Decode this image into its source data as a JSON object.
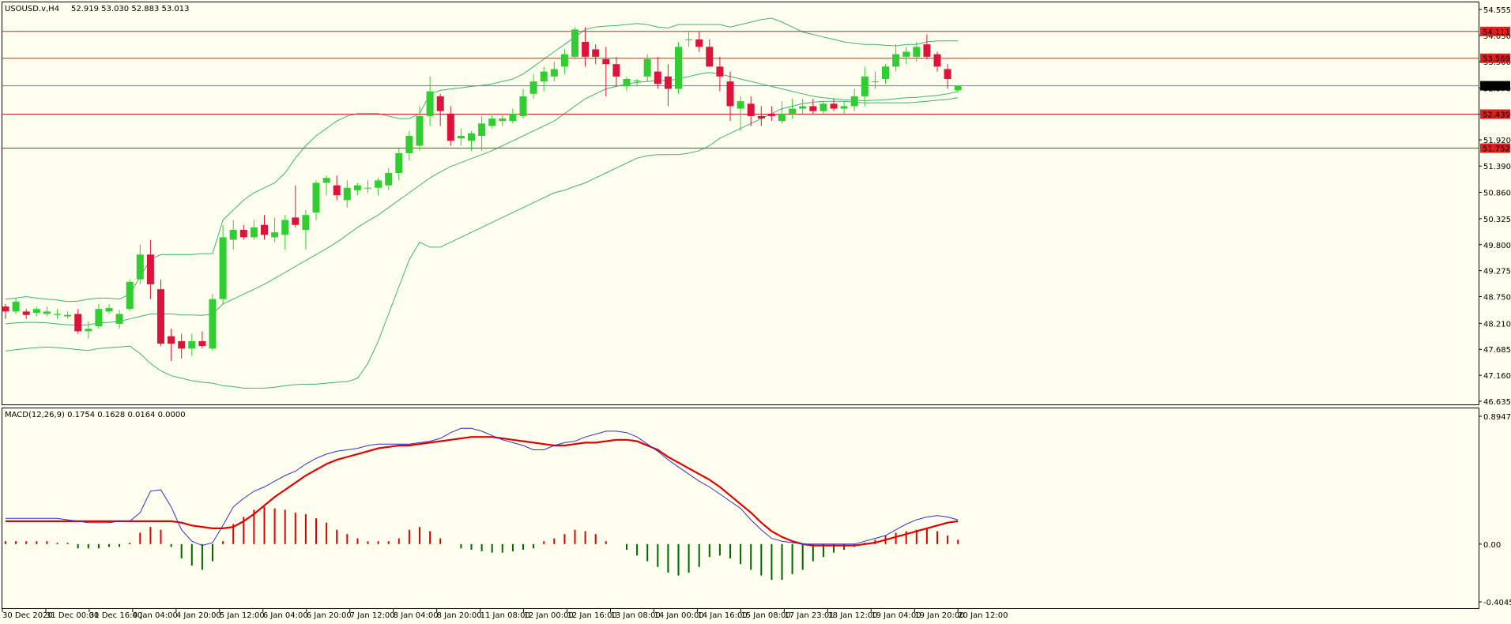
{
  "chart_data": [
    {
      "type": "candlestick",
      "title": "USOUSD.v,H4",
      "ohlc_header": "52.919 53.030 52.883 53.013",
      "ylim": [
        46.635,
        54.555
      ],
      "y_ticks": [
        "54.555",
        "54.030",
        "53.500",
        "52.970",
        "52.440",
        "51.920",
        "51.390",
        "50.860",
        "50.325",
        "49.800",
        "49.275",
        "48.750",
        "48.210",
        "47.685",
        "47.160",
        "46.635"
      ],
      "bar_colors": {
        "up": "#32cd32",
        "down": "#dc143c"
      },
      "candles": [
        [
          48.55,
          48.6,
          48.3,
          48.45
        ],
        [
          48.45,
          48.72,
          48.4,
          48.65
        ],
        [
          48.45,
          48.5,
          48.3,
          48.38
        ],
        [
          48.42,
          48.55,
          48.35,
          48.5
        ],
        [
          48.4,
          48.55,
          48.35,
          48.45
        ],
        [
          48.38,
          48.5,
          48.3,
          48.4
        ],
        [
          48.35,
          48.45,
          48.3,
          48.38
        ],
        [
          48.4,
          48.5,
          48.0,
          48.05
        ],
        [
          48.05,
          48.25,
          47.9,
          48.1
        ],
        [
          48.15,
          48.6,
          48.1,
          48.5
        ],
        [
          48.45,
          48.6,
          48.4,
          48.52
        ],
        [
          48.2,
          48.48,
          48.1,
          48.4
        ],
        [
          48.5,
          49.1,
          48.45,
          49.05
        ],
        [
          49.1,
          49.8,
          49.0,
          49.6
        ],
        [
          49.6,
          49.9,
          48.7,
          49.0
        ],
        [
          48.9,
          49.1,
          47.75,
          47.8
        ],
        [
          47.95,
          48.1,
          47.45,
          47.8
        ],
        [
          47.85,
          48.0,
          47.5,
          47.7
        ],
        [
          47.7,
          48.0,
          47.55,
          47.85
        ],
        [
          47.85,
          48.05,
          47.7,
          47.75
        ],
        [
          47.7,
          48.8,
          47.65,
          48.7
        ],
        [
          48.7,
          50.2,
          48.6,
          49.95
        ],
        [
          49.9,
          50.3,
          49.7,
          50.1
        ],
        [
          50.1,
          50.2,
          49.9,
          49.95
        ],
        [
          49.95,
          50.3,
          49.9,
          50.15
        ],
        [
          50.2,
          50.4,
          49.9,
          50.0
        ],
        [
          49.95,
          50.35,
          49.85,
          50.05
        ],
        [
          50.0,
          50.4,
          49.7,
          50.3
        ],
        [
          50.35,
          51.0,
          50.15,
          50.2
        ],
        [
          50.1,
          50.5,
          49.7,
          50.4
        ],
        [
          50.45,
          51.1,
          50.3,
          51.05
        ],
        [
          51.05,
          51.2,
          50.8,
          51.15
        ],
        [
          51.0,
          51.2,
          50.7,
          50.8
        ],
        [
          50.7,
          51.1,
          50.55,
          50.95
        ],
        [
          50.9,
          51.05,
          50.8,
          51.0
        ],
        [
          50.95,
          51.1,
          50.85,
          50.95
        ],
        [
          50.95,
          51.15,
          50.8,
          51.1
        ],
        [
          51.0,
          51.35,
          50.9,
          51.25
        ],
        [
          51.25,
          51.75,
          51.1,
          51.65
        ],
        [
          51.65,
          52.1,
          51.5,
          52.0
        ],
        [
          51.8,
          52.6,
          51.7,
          52.4
        ],
        [
          52.4,
          53.2,
          52.2,
          52.9
        ],
        [
          52.8,
          52.85,
          52.2,
          52.5
        ],
        [
          52.45,
          52.6,
          51.8,
          51.9
        ],
        [
          51.95,
          52.15,
          51.8,
          52.0
        ],
        [
          51.9,
          52.1,
          51.7,
          52.05
        ],
        [
          52.0,
          52.4,
          51.7,
          52.25
        ],
        [
          52.2,
          52.45,
          52.15,
          52.35
        ],
        [
          52.3,
          52.45,
          52.2,
          52.35
        ],
        [
          52.3,
          52.55,
          52.25,
          52.45
        ],
        [
          52.4,
          52.95,
          52.35,
          52.8
        ],
        [
          52.85,
          53.25,
          52.75,
          53.1
        ],
        [
          53.1,
          53.4,
          52.9,
          53.3
        ],
        [
          53.2,
          53.5,
          53.1,
          53.35
        ],
        [
          53.4,
          53.75,
          53.25,
          53.65
        ],
        [
          53.6,
          54.2,
          53.55,
          54.15
        ],
        [
          53.9,
          54.2,
          53.4,
          53.6
        ],
        [
          53.75,
          53.85,
          53.45,
          53.6
        ],
        [
          53.55,
          53.8,
          52.8,
          53.45
        ],
        [
          53.45,
          53.6,
          53.0,
          53.2
        ],
        [
          53.0,
          53.2,
          52.9,
          53.15
        ],
        [
          53.1,
          53.15,
          53.0,
          53.12
        ],
        [
          53.2,
          53.65,
          53.1,
          53.55
        ],
        [
          53.3,
          53.6,
          52.95,
          53.05
        ],
        [
          53.2,
          53.45,
          52.6,
          52.95
        ],
        [
          52.95,
          53.9,
          52.85,
          53.8
        ],
        [
          53.95,
          54.1,
          53.8,
          53.95
        ],
        [
          53.95,
          54.1,
          53.7,
          53.8
        ],
        [
          53.8,
          53.95,
          53.4,
          53.4
        ],
        [
          53.4,
          53.6,
          52.9,
          53.2
        ],
        [
          53.1,
          53.3,
          52.3,
          52.6
        ],
        [
          52.55,
          52.8,
          52.1,
          52.7
        ],
        [
          52.65,
          52.8,
          52.2,
          52.4
        ],
        [
          52.4,
          52.6,
          52.2,
          52.35
        ],
        [
          52.45,
          52.6,
          52.3,
          52.4
        ],
        [
          52.3,
          52.7,
          52.25,
          52.45
        ],
        [
          52.45,
          52.75,
          52.35,
          52.55
        ],
        [
          52.55,
          52.75,
          52.45,
          52.6
        ],
        [
          52.6,
          52.75,
          52.45,
          52.5
        ],
        [
          52.5,
          52.7,
          52.45,
          52.65
        ],
        [
          52.65,
          52.75,
          52.5,
          52.55
        ],
        [
          52.55,
          52.7,
          52.45,
          52.6
        ],
        [
          52.6,
          52.95,
          52.5,
          52.8
        ],
        [
          52.8,
          53.4,
          52.6,
          53.2
        ],
        [
          53.1,
          53.3,
          52.95,
          53.1
        ],
        [
          53.15,
          53.45,
          53.05,
          53.4
        ],
        [
          53.4,
          53.85,
          53.3,
          53.65
        ],
        [
          53.6,
          53.8,
          53.45,
          53.7
        ],
        [
          53.6,
          53.9,
          53.5,
          53.8
        ],
        [
          53.85,
          54.05,
          53.55,
          53.6
        ],
        [
          53.65,
          53.7,
          53.3,
          53.4
        ],
        [
          53.35,
          53.45,
          52.95,
          53.15
        ],
        [
          52.92,
          53.03,
          52.88,
          53.01
        ]
      ],
      "bollinger": {
        "upper": [
          48.7,
          48.72,
          48.75,
          48.72,
          48.7,
          48.68,
          48.65,
          48.66,
          48.7,
          48.72,
          48.72,
          48.7,
          48.8,
          49.15,
          49.5,
          49.6,
          49.6,
          49.6,
          49.6,
          49.62,
          49.62,
          50.3,
          50.5,
          50.7,
          50.85,
          50.95,
          51.05,
          51.25,
          51.55,
          51.8,
          52.0,
          52.15,
          52.3,
          52.4,
          52.45,
          52.45,
          52.45,
          52.4,
          52.35,
          52.35,
          52.45,
          52.85,
          52.92,
          52.95,
          52.97,
          53.0,
          53.02,
          53.05,
          53.1,
          53.15,
          53.25,
          53.4,
          53.55,
          53.7,
          53.85,
          54.0,
          54.15,
          54.2,
          54.22,
          54.23,
          54.25,
          54.27,
          54.25,
          54.2,
          54.18,
          54.25,
          54.25,
          54.25,
          54.25,
          54.25,
          54.2,
          54.25,
          54.3,
          54.35,
          54.38,
          54.3,
          54.2,
          54.1,
          54.05,
          54.0,
          53.95,
          53.9,
          53.87,
          53.85,
          53.85,
          53.83,
          53.82,
          53.85,
          53.85,
          53.9,
          53.92,
          53.92,
          53.92
        ],
        "middle": [
          48.2,
          48.22,
          48.23,
          48.23,
          48.22,
          48.2,
          48.18,
          48.17,
          48.18,
          48.22,
          48.23,
          48.25,
          48.3,
          48.35,
          48.4,
          48.4,
          48.4,
          48.38,
          48.38,
          48.37,
          48.4,
          48.6,
          48.7,
          48.8,
          48.9,
          49.0,
          49.12,
          49.24,
          49.36,
          49.48,
          49.6,
          49.72,
          49.85,
          50.0,
          50.15,
          50.28,
          50.4,
          50.55,
          50.7,
          50.85,
          51.0,
          51.15,
          51.27,
          51.38,
          51.46,
          51.54,
          51.62,
          51.7,
          51.8,
          51.9,
          52.0,
          52.1,
          52.2,
          52.3,
          52.45,
          52.6,
          52.75,
          52.85,
          52.95,
          53.0,
          53.05,
          53.08,
          53.1,
          53.12,
          53.12,
          53.15,
          53.2,
          53.25,
          53.28,
          53.25,
          53.2,
          53.15,
          53.1,
          53.05,
          53.0,
          52.95,
          52.9,
          52.85,
          52.8,
          52.77,
          52.75,
          52.73,
          52.72,
          52.71,
          52.72,
          52.73,
          52.75,
          52.77,
          52.78,
          52.8,
          52.82,
          52.85,
          52.9
        ],
        "lower": [
          47.65,
          47.68,
          47.7,
          47.72,
          47.73,
          47.72,
          47.7,
          47.68,
          47.66,
          47.7,
          47.72,
          47.73,
          47.75,
          47.6,
          47.4,
          47.25,
          47.15,
          47.1,
          47.05,
          47.02,
          47.0,
          46.95,
          46.93,
          46.9,
          46.9,
          46.9,
          46.92,
          46.95,
          46.97,
          46.98,
          46.98,
          47.0,
          47.02,
          47.03,
          47.1,
          47.4,
          47.85,
          48.4,
          48.95,
          49.5,
          49.85,
          49.75,
          49.75,
          49.85,
          49.95,
          50.05,
          50.15,
          50.25,
          50.35,
          50.45,
          50.55,
          50.65,
          50.75,
          50.85,
          50.9,
          50.98,
          51.05,
          51.15,
          51.25,
          51.35,
          51.45,
          51.55,
          51.6,
          51.62,
          51.62,
          51.62,
          51.65,
          51.7,
          51.8,
          51.95,
          52.05,
          52.15,
          52.25,
          52.35,
          52.45,
          52.55,
          52.6,
          52.65,
          52.68,
          52.7,
          52.7,
          52.7,
          52.68,
          52.67,
          52.67,
          52.67,
          52.67,
          52.67,
          52.68,
          52.7,
          52.72,
          52.74,
          52.77
        ]
      },
      "levels": [
        {
          "value": 54.111,
          "label": "54.111",
          "color": "#dc2020"
        },
        {
          "value": 53.569,
          "label": "53.569",
          "color": "#dc2020"
        },
        {
          "value": 53.013,
          "label": "53.013",
          "color": "#000000"
        },
        {
          "value": 52.439,
          "label": "52.439",
          "color": "#dc2020"
        },
        {
          "value": 51.752,
          "label": "51.752",
          "color": "#dc2020"
        }
      ]
    },
    {
      "type": "macd",
      "title": "MACD(12,26,9) 0.1754 0.1628 0.0164 0.0000",
      "ylim": [
        -0.4045,
        0.8947
      ],
      "y_ticks": [
        "0.8947",
        "0.00",
        "-0.4045"
      ],
      "colors": {
        "macd": "#2f2fcf",
        "signal": "#e00000",
        "hist_up": "#e00000",
        "hist_down": "#006400"
      },
      "macd": [
        0.18,
        0.18,
        0.18,
        0.18,
        0.18,
        0.18,
        0.17,
        0.16,
        0.15,
        0.15,
        0.15,
        0.16,
        0.16,
        0.22,
        0.37,
        0.38,
        0.26,
        0.1,
        0.02,
        -0.01,
        0.01,
        0.13,
        0.26,
        0.32,
        0.37,
        0.4,
        0.44,
        0.48,
        0.51,
        0.56,
        0.6,
        0.63,
        0.65,
        0.66,
        0.67,
        0.69,
        0.7,
        0.7,
        0.7,
        0.7,
        0.71,
        0.72,
        0.74,
        0.78,
        0.81,
        0.81,
        0.79,
        0.76,
        0.73,
        0.71,
        0.69,
        0.66,
        0.66,
        0.69,
        0.71,
        0.72,
        0.75,
        0.77,
        0.79,
        0.79,
        0.78,
        0.75,
        0.7,
        0.65,
        0.59,
        0.54,
        0.49,
        0.44,
        0.4,
        0.35,
        0.3,
        0.25,
        0.17,
        0.1,
        0.04,
        0.02,
        0.01,
        0.0,
        0.0,
        0.0,
        0.0,
        0.0,
        0.0,
        0.02,
        0.04,
        0.06,
        0.1,
        0.14,
        0.17,
        0.19,
        0.2,
        0.19,
        0.17
      ],
      "signal": [
        0.16,
        0.16,
        0.16,
        0.16,
        0.16,
        0.16,
        0.16,
        0.16,
        0.16,
        0.16,
        0.16,
        0.16,
        0.16,
        0.16,
        0.16,
        0.16,
        0.16,
        0.15,
        0.13,
        0.12,
        0.11,
        0.11,
        0.12,
        0.16,
        0.21,
        0.27,
        0.33,
        0.38,
        0.43,
        0.48,
        0.52,
        0.56,
        0.59,
        0.61,
        0.63,
        0.65,
        0.67,
        0.68,
        0.69,
        0.69,
        0.7,
        0.71,
        0.72,
        0.73,
        0.74,
        0.75,
        0.75,
        0.75,
        0.74,
        0.73,
        0.72,
        0.71,
        0.7,
        0.69,
        0.69,
        0.7,
        0.71,
        0.71,
        0.72,
        0.73,
        0.73,
        0.72,
        0.69,
        0.66,
        0.61,
        0.57,
        0.53,
        0.49,
        0.45,
        0.4,
        0.34,
        0.28,
        0.22,
        0.15,
        0.09,
        0.05,
        0.02,
        0.0,
        -0.01,
        -0.01,
        -0.01,
        -0.01,
        -0.01,
        0.0,
        0.01,
        0.03,
        0.05,
        0.07,
        0.09,
        0.11,
        0.13,
        0.15,
        0.16
      ],
      "histogram": [
        0.02,
        0.02,
        0.02,
        0.02,
        0.02,
        0.01,
        0.01,
        -0.03,
        -0.03,
        -0.03,
        -0.02,
        -0.02,
        0.01,
        0.08,
        0.12,
        0.1,
        -0.02,
        -0.1,
        -0.15,
        -0.18,
        -0.12,
        0.02,
        0.14,
        0.19,
        0.24,
        0.26,
        0.25,
        0.24,
        0.22,
        0.21,
        0.18,
        0.15,
        0.1,
        0.07,
        0.04,
        0.02,
        0.02,
        0.02,
        0.04,
        0.1,
        0.12,
        0.09,
        0.04,
        0.0,
        -0.03,
        -0.04,
        -0.05,
        -0.06,
        -0.06,
        -0.05,
        -0.04,
        -0.03,
        0.02,
        0.04,
        0.07,
        0.1,
        0.09,
        0.07,
        0.02,
        0.0,
        -0.04,
        -0.08,
        -0.12,
        -0.16,
        -0.2,
        -0.22,
        -0.2,
        -0.16,
        -0.09,
        -0.08,
        -0.1,
        -0.14,
        -0.18,
        -0.22,
        -0.25,
        -0.25,
        -0.21,
        -0.18,
        -0.12,
        -0.09,
        -0.06,
        -0.04,
        -0.02,
        0.01,
        0.03,
        0.06,
        0.08,
        0.09,
        0.1,
        0.11,
        0.09,
        0.06,
        0.03
      ]
    }
  ],
  "x_labels": [
    "30 Dec 2020",
    "31 Dec 00:00",
    "31 Dec 16:00",
    "4 Jan 04:00",
    "4 Jan 20:00",
    "5 Jan 12:00",
    "6 Jan 04:00",
    "6 Jan 20:00",
    "7 Jan 12:00",
    "8 Jan 04:00",
    "8 Jan 20:00",
    "11 Jan 08:00",
    "12 Jan 00:00",
    "12 Jan 16:00",
    "13 Jan 08:00",
    "14 Jan 00:00",
    "14 Jan 16:00",
    "15 Jan 08:00",
    "17 Jan 23:01",
    "18 Jan 12:00",
    "19 Jan 04:00",
    "19 Jan 20:00",
    "20 Jan 12:00"
  ]
}
